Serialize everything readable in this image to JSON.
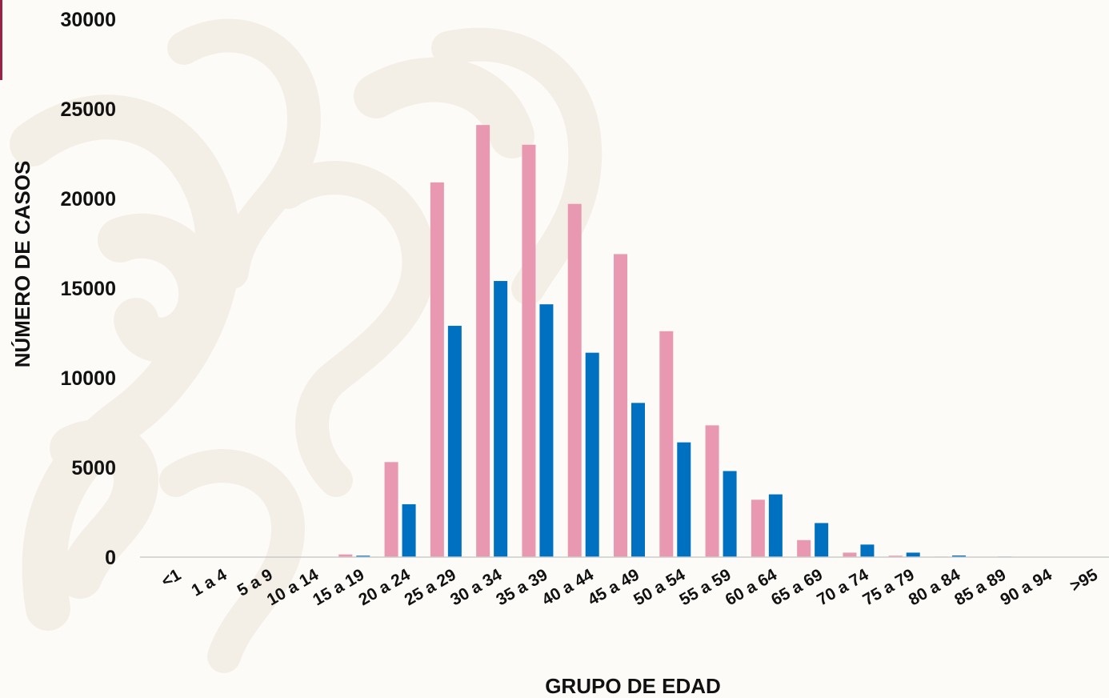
{
  "colors": {
    "accent": "#9b2247",
    "female": "#e899b1",
    "male": "#0070c0",
    "axis": "#cccccc",
    "watermark": "#f4efe6"
  },
  "chart_data": {
    "type": "bar",
    "xlabel": "GRUPO DE EDAD",
    "ylabel": "NÚMERO DE CASOS",
    "ylim": [
      0,
      30000
    ],
    "y_ticks": [
      "0",
      "5000",
      "10000",
      "15000",
      "20000",
      "25000",
      "30000"
    ],
    "grid": false,
    "categories": [
      "<1",
      "1 a 4",
      "5 a 9",
      "10 a 14",
      "15 a 19",
      "20 a 24",
      "25 a 29",
      "30 a 34",
      "35 a 39",
      "40 a 44",
      "45 a 49",
      "50 a 54",
      "55 a 59",
      "60 a 64",
      "65 a 69",
      "70 a 74",
      "75 a 79",
      "80 a 84",
      "85 a 89",
      "90 a 94",
      ">95"
    ],
    "series": [
      {
        "color": "#e899b1",
        "values": [
          0,
          0,
          0,
          0,
          150,
          5300,
          20900,
          24100,
          23000,
          19700,
          16900,
          12600,
          7350,
          3200,
          950,
          250,
          80,
          30,
          10,
          0,
          0
        ]
      },
      {
        "color": "#0070c0",
        "values": [
          0,
          20,
          10,
          10,
          80,
          2950,
          12900,
          15400,
          14100,
          11400,
          8600,
          6400,
          4800,
          3500,
          1900,
          700,
          250,
          90,
          30,
          0,
          0
        ]
      }
    ]
  }
}
